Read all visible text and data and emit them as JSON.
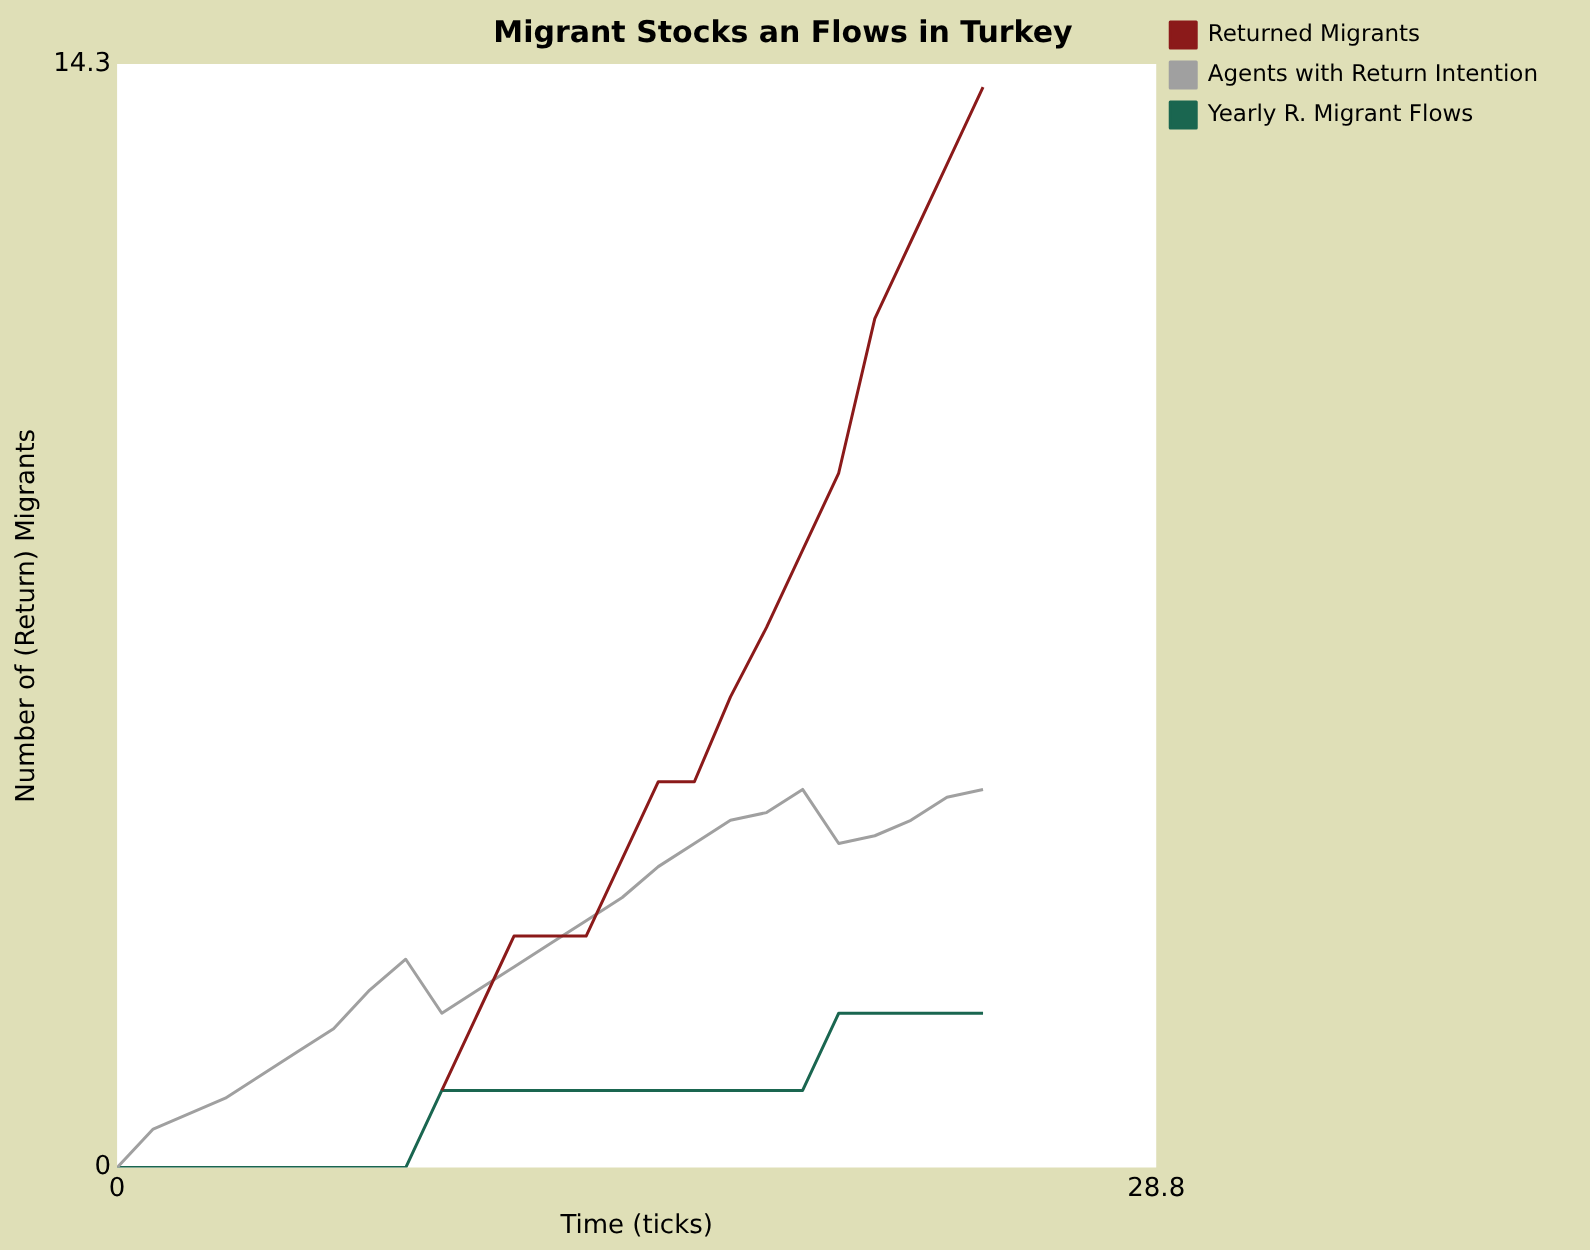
{
  "chart_data": {
    "type": "line",
    "title": "Migrant Stocks an Flows in Turkey",
    "xlabel": "Time (ticks)",
    "ylabel": "Number of (Return) Migrants",
    "x": [
      0,
      1,
      2,
      3,
      4,
      5,
      6,
      7,
      8,
      9,
      10,
      11,
      12,
      13,
      14,
      15,
      16,
      17,
      18,
      19,
      20,
      21,
      22,
      23,
      24
    ],
    "series": [
      {
        "name": "Returned Migrants",
        "color": "#8b1a1a",
        "values": [
          null,
          null,
          null,
          null,
          null,
          null,
          null,
          null,
          null,
          1,
          2,
          3,
          3,
          3,
          4,
          5,
          5,
          6.1,
          7,
          8,
          9,
          11,
          12,
          13,
          14
        ]
      },
      {
        "name": "Agents with Return Intention",
        "color": "#a0a0a0",
        "values": [
          0,
          0.5,
          0.7,
          0.9,
          1.2,
          1.5,
          1.8,
          2.3,
          2.7,
          2,
          2.3,
          2.6,
          2.9,
          3.2,
          3.5,
          3.9,
          4.2,
          4.5,
          4.6,
          4.9,
          4.2,
          4.3,
          4.5,
          4.8,
          4.9
        ]
      },
      {
        "name": "Yearly R. Migrant Flows",
        "color": "#1a6650",
        "values": [
          0,
          0,
          0,
          0,
          0,
          0,
          0,
          0,
          0,
          1,
          1,
          1,
          1,
          1,
          1,
          1,
          1,
          1,
          1,
          1,
          2,
          2,
          2,
          2,
          2
        ]
      }
    ],
    "xlim": [
      0,
      28.8
    ],
    "xticks": [
      0,
      28.8
    ],
    "ylim": [
      0,
      14.3
    ],
    "yticks": [
      0,
      14.3
    ],
    "grid": false,
    "legend": "top right",
    "marker": "none",
    "line_style": "solid"
  }
}
